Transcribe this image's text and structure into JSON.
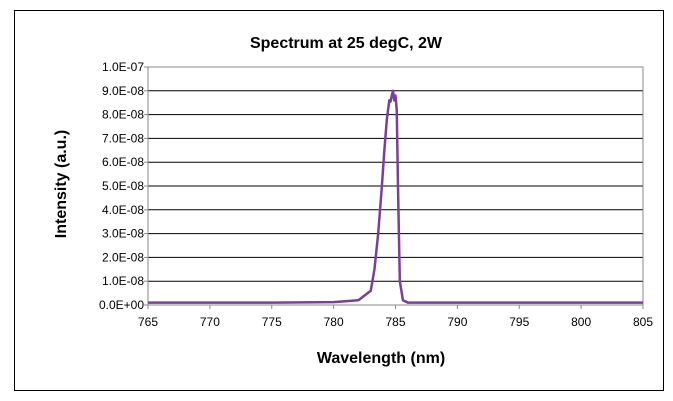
{
  "chart_data": {
    "type": "line",
    "title": "Spectrum at 25 degC, 2W",
    "xlabel": "Wavelength (nm)",
    "ylabel": "Intensity (a.u.)",
    "xlim": [
      765,
      805
    ],
    "ylim": [
      0,
      1e-07
    ],
    "x_ticks": [
      765,
      770,
      775,
      780,
      785,
      790,
      795,
      800,
      805
    ],
    "x_tick_labels": [
      "765",
      "770",
      "775",
      "780",
      "785",
      "790",
      "795",
      "800",
      "805"
    ],
    "y_ticks": [
      0,
      1e-08,
      2e-08,
      3e-08,
      4e-08,
      5e-08,
      6e-08,
      7e-08,
      8e-08,
      9e-08,
      1e-07
    ],
    "y_tick_labels": [
      "0.0E+00",
      "1.0E-08",
      "2.0E-08",
      "3.0E-08",
      "4.0E-08",
      "5.0E-08",
      "6.0E-08",
      "7.0E-08",
      "8.0E-08",
      "9.0E-08",
      "1.0E-07"
    ],
    "grid": "horizontal",
    "legend": "none",
    "series": [
      {
        "color": "#7B3F99",
        "x": [
          765,
          770,
          775,
          780,
          782,
          783,
          783.3,
          783.6,
          783.9,
          784.1,
          784.3,
          784.5,
          784.6,
          784.7,
          784.8,
          784.9,
          785.0,
          785.1,
          785.2,
          785.35,
          785.6,
          786,
          790,
          795,
          800,
          805
        ],
        "y": [
          1e-09,
          1e-09,
          1e-09,
          1.2e-09,
          2e-09,
          6e-09,
          1.5e-08,
          3e-08,
          5e-08,
          6.5e-08,
          7.8e-08,
          8.6e-08,
          8.55e-08,
          8.8e-08,
          9e-08,
          8.6e-08,
          8.8e-08,
          8.2e-08,
          5e-08,
          1e-08,
          2e-09,
          1e-09,
          1e-09,
          1e-09,
          1e-09,
          1e-09
        ]
      }
    ]
  }
}
